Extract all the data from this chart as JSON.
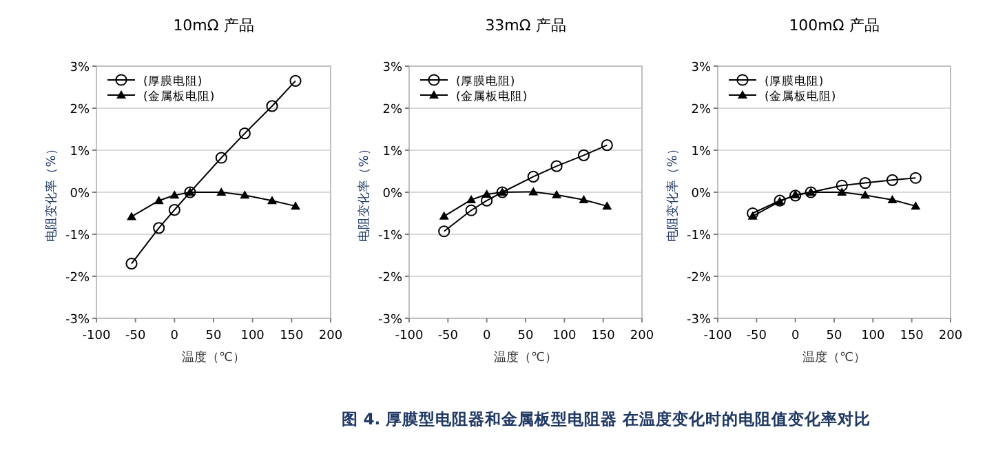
{
  "chart_data": [
    {
      "type": "line",
      "title": "10mΩ 产品",
      "xlabel": "温度（℃）",
      "ylabel": "电阻变化率（%）",
      "x": [
        -55,
        -20,
        0,
        20,
        60,
        90,
        125,
        155
      ],
      "xlim": [
        -100,
        200
      ],
      "xticks": [
        -100,
        -50,
        0,
        50,
        100,
        150,
        200
      ],
      "ylim": [
        -3,
        3
      ],
      "yticks": [
        {
          "value": -3,
          "label": "-3%"
        },
        {
          "value": -2,
          "label": "-2%"
        },
        {
          "value": -1,
          "label": "-1%"
        },
        {
          "value": 0,
          "label": "0%"
        },
        {
          "value": 1,
          "label": "1%"
        },
        {
          "value": 2,
          "label": "2%"
        },
        {
          "value": 3,
          "label": "3%"
        }
      ],
      "grid": "y",
      "legend": "top left",
      "series": [
        {
          "name": "(厚膜电阻)",
          "color": "#000000",
          "marker": "circle",
          "values": [
            -1.7,
            -0.85,
            -0.42,
            0,
            0.82,
            1.4,
            2.05,
            2.65
          ]
        },
        {
          "name": "(金属板电阻)",
          "color": "#000000",
          "marker": "triangle",
          "values": [
            -0.58,
            -0.2,
            -0.07,
            0,
            0,
            -0.07,
            -0.2,
            -0.33
          ]
        }
      ],
      "annotations": [
        "图 4. 厚膜型电阻器和金属板型电阻器 在温度变化时的电阻值变化率对比"
      ]
    },
    {
      "type": "line",
      "title": "33mΩ 产品",
      "xlabel": "温度（℃）",
      "ylabel": "电阻变化率（%）",
      "x": [
        -55,
        -20,
        0,
        20,
        60,
        90,
        125,
        155
      ],
      "xlim": [
        -100,
        200
      ],
      "xticks": [
        -100,
        -50,
        0,
        50,
        100,
        150,
        200
      ],
      "ylim": [
        -3,
        3
      ],
      "yticks": [
        {
          "value": -3,
          "label": "-3%"
        },
        {
          "value": -2,
          "label": "-2%"
        },
        {
          "value": -1,
          "label": "-1%"
        },
        {
          "value": 0,
          "label": "0%"
        },
        {
          "value": 1,
          "label": "1%"
        },
        {
          "value": 2,
          "label": "2%"
        },
        {
          "value": 3,
          "label": "3%"
        }
      ],
      "grid": "y",
      "legend": "top left",
      "series": [
        {
          "name": "(厚膜电阻)",
          "color": "#000000",
          "marker": "circle",
          "values": [
            -0.93,
            -0.43,
            -0.2,
            0,
            0.37,
            0.62,
            0.88,
            1.12
          ]
        },
        {
          "name": "(金属板电阻)",
          "color": "#000000",
          "marker": "triangle",
          "values": [
            -0.57,
            -0.18,
            -0.05,
            0,
            0.01,
            -0.06,
            -0.18,
            -0.33
          ]
        }
      ]
    },
    {
      "type": "line",
      "title": "100mΩ 产品",
      "xlabel": "温度（℃）",
      "ylabel": "电阻变化率（%）",
      "x": [
        -55,
        -20,
        0,
        20,
        60,
        90,
        125,
        155
      ],
      "xlim": [
        -100,
        200
      ],
      "xticks": [
        -100,
        -50,
        0,
        50,
        100,
        150,
        200
      ],
      "ylim": [
        -3,
        3
      ],
      "yticks": [
        {
          "value": -3,
          "label": "-3%"
        },
        {
          "value": -2,
          "label": "-2%"
        },
        {
          "value": -1,
          "label": "-1%"
        },
        {
          "value": 0,
          "label": "0%"
        },
        {
          "value": 1,
          "label": "1%"
        },
        {
          "value": 2,
          "label": "2%"
        },
        {
          "value": 3,
          "label": "3%"
        }
      ],
      "grid": "y",
      "legend": "top left",
      "series": [
        {
          "name": "(厚膜电阻)",
          "color": "#000000",
          "marker": "circle",
          "values": [
            -0.5,
            -0.2,
            -0.08,
            0,
            0.16,
            0.22,
            0.29,
            0.34
          ]
        },
        {
          "name": "(金属板电阻)",
          "color": "#000000",
          "marker": "triangle",
          "values": [
            -0.57,
            -0.22,
            -0.06,
            0,
            0,
            -0.07,
            -0.18,
            -0.33
          ]
        }
      ]
    }
  ]
}
